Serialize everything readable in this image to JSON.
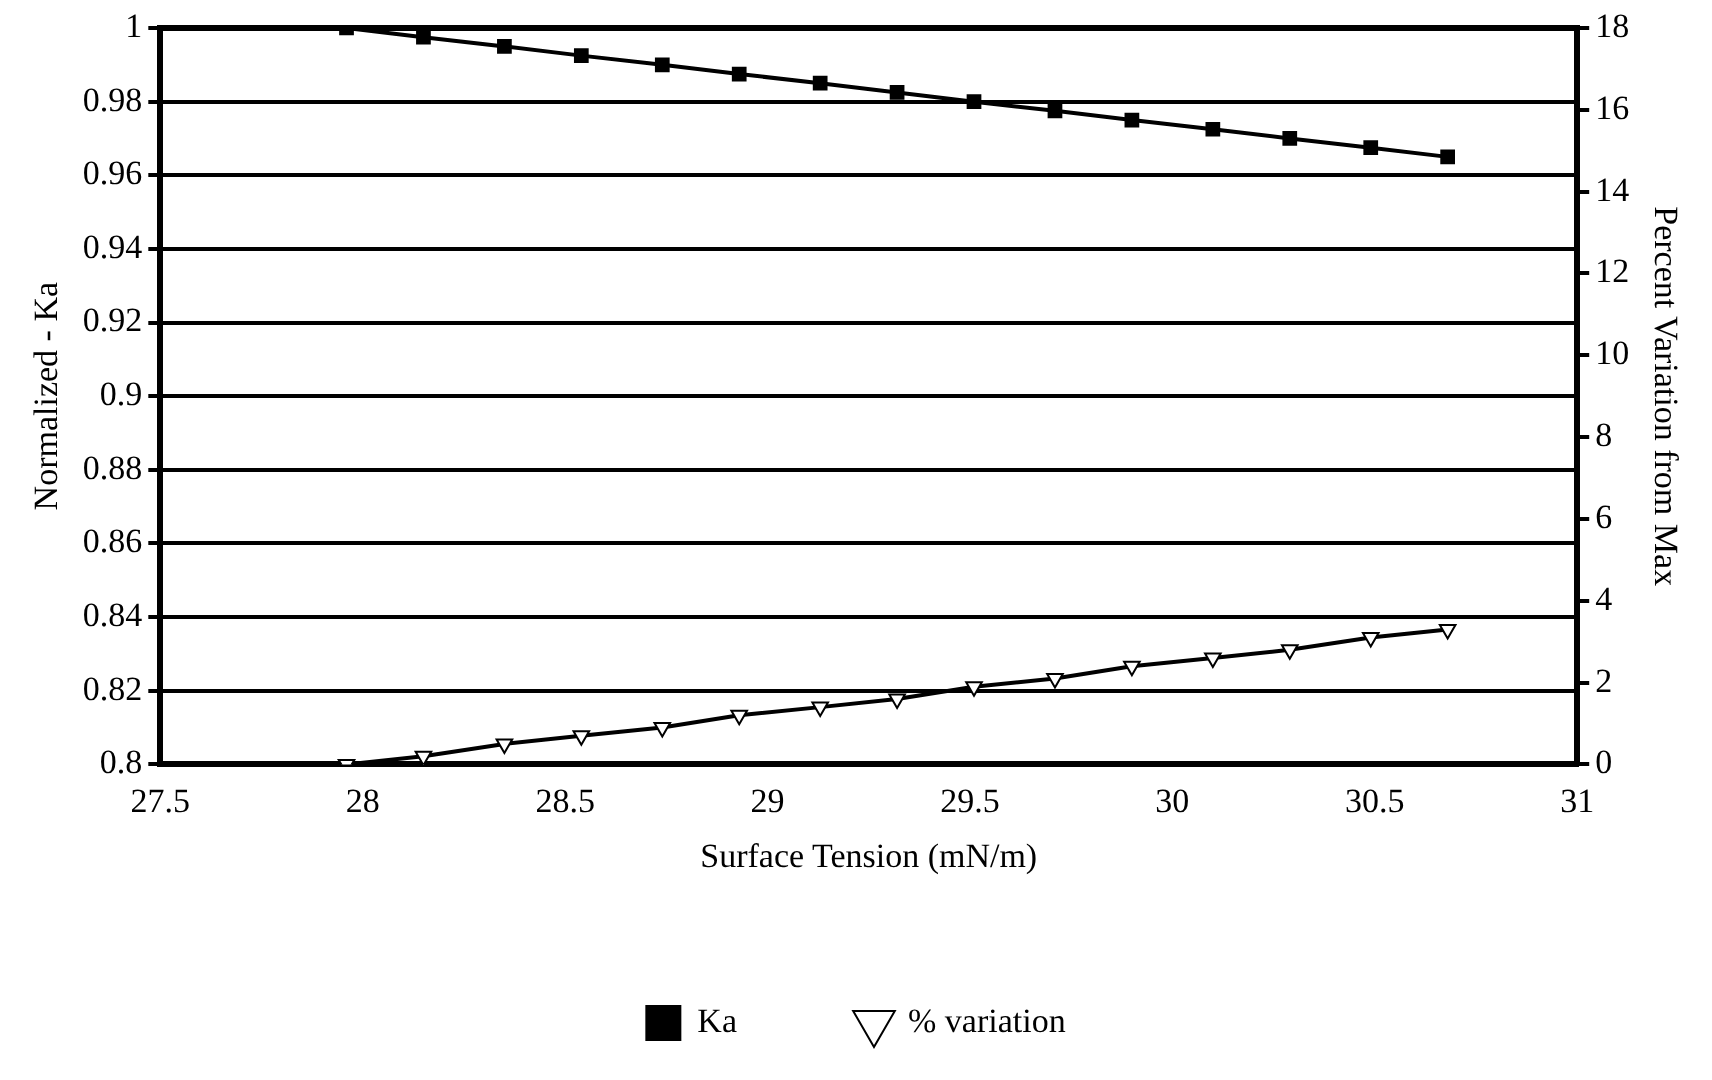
{
  "chart_data": {
    "type": "line",
    "xlabel": "Surface Tension (mN/m)",
    "ylabel": "Normalized - Ka",
    "y2label": "Percent Variation from Max",
    "x": [
      27.96,
      28.15,
      28.35,
      28.54,
      28.74,
      28.93,
      29.13,
      29.32,
      29.51,
      29.71,
      29.9,
      30.1,
      30.29,
      30.49,
      30.68
    ],
    "series": [
      {
        "name": "Ka",
        "color": "#000000",
        "marker": "square",
        "values": [
          1,
          0.9975,
          0.995,
          0.9925,
          0.99,
          0.9875,
          0.985,
          0.9825,
          0.98,
          0.9775,
          0.975,
          0.9725,
          0.97,
          0.9675,
          0.965
        ]
      },
      {
        "name": "% variation",
        "color": "#000000",
        "marker": "triangle",
        "axis": "y2",
        "values": [
          0,
          0.2,
          0.5,
          0.7,
          0.9,
          1.2,
          1.4,
          1.6,
          1.9,
          2.1,
          2.4,
          2.6,
          2.8,
          3.1,
          3.3
        ]
      }
    ],
    "xlim": [
      27.5,
      31
    ],
    "xticks": [
      27.5,
      28,
      28.5,
      29,
      29.5,
      30,
      30.5,
      31
    ],
    "ylim": [
      0.8,
      1
    ],
    "yticks": [
      0.8,
      0.82,
      0.84,
      0.86,
      0.88,
      0.9,
      0.92,
      0.94,
      0.96,
      0.98,
      1
    ],
    "y2lim": [
      0,
      18
    ],
    "y2ticks": [
      0,
      2,
      4,
      6,
      8,
      10,
      12,
      14,
      16,
      18
    ],
    "grid": "y",
    "legend": "bottom"
  }
}
